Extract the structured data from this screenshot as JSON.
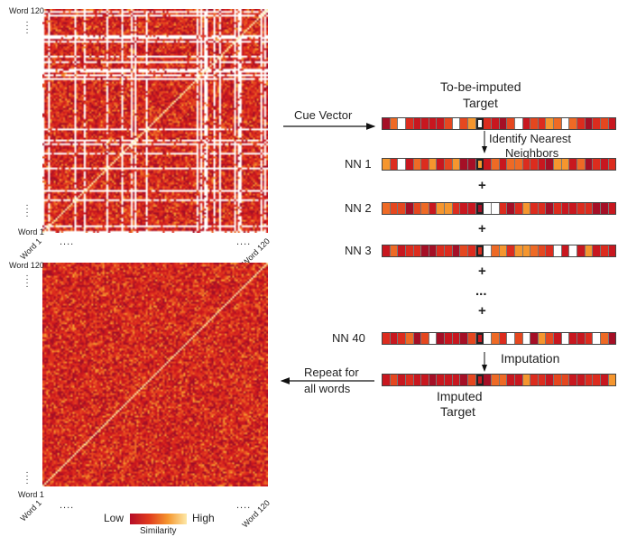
{
  "top_matrix": {
    "y_top": "Word 120",
    "y_bottom": "Word 1",
    "x_left": "Word 1",
    "x_right": "Word 120",
    "dots": "...."
  },
  "bottom_matrix": {
    "y_top": "Word 120",
    "y_bottom": "Word 1",
    "x_left": "Word 1",
    "x_right": "Word 120",
    "dots": "...."
  },
  "labels": {
    "cue_vector": "Cue Vector",
    "target_title_1": "To-be-imputed",
    "target_title_2": "Target",
    "identify_1": "Identify Nearest",
    "identify_2": "Neighbors",
    "nn1": "NN 1",
    "nn2": "NN 2",
    "nn3": "NN 3",
    "nn40": "NN 40",
    "plus": "+",
    "ellipsis": "...",
    "imputation": "Imputation",
    "imputed_1": "Imputed",
    "imputed_2": "Target",
    "repeat_1": "Repeat for",
    "repeat_2": "all words"
  },
  "colorbar": {
    "low": "Low",
    "high": "High",
    "title": "Similarity"
  },
  "colors": {
    "palette": [
      "#a50f26",
      "#c8171f",
      "#dc2c1e",
      "#e5471f",
      "#ee6a25",
      "#f5962e",
      "#fde9a8",
      "#ffffff"
    ]
  }
}
